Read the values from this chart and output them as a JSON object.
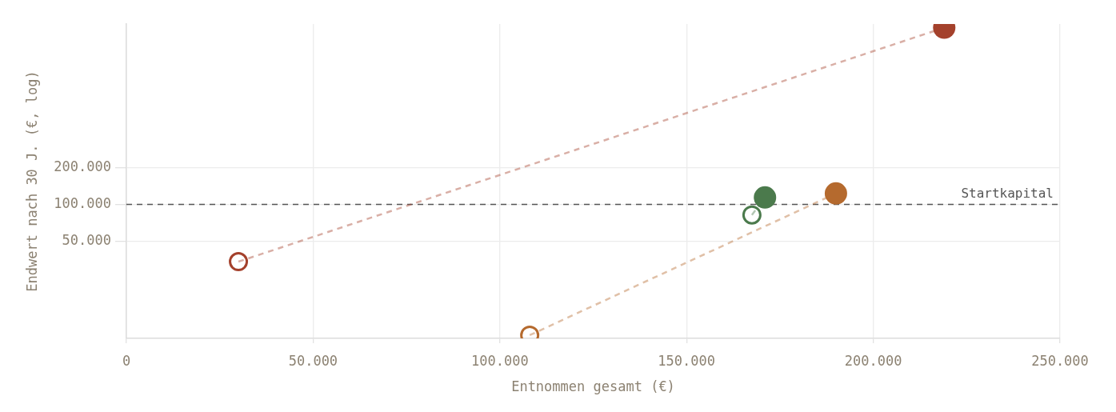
{
  "chart_data": {
    "type": "line",
    "xlabel": "Entnommen gesamt (€)",
    "ylabel": "Endwert nach 30 J. (€, log)",
    "log": "y",
    "xlim": [
      0,
      250000
    ],
    "xticks": [
      0,
      {
        "value": 50000,
        "label": "50.000"
      },
      {
        "value": 100000,
        "label": "100.000"
      },
      {
        "value": 150000,
        "label": "150.000"
      },
      {
        "value": 200000,
        "label": "200.000"
      },
      {
        "value": 250000,
        "label": "250.000"
      }
    ],
    "ylim": [
      8000,
      3000000
    ],
    "yticks": [
      {
        "value": 50000,
        "label": "50.000"
      },
      {
        "value": 100000,
        "label": "100.000"
      },
      {
        "value": 200000,
        "label": "200.000"
      }
    ],
    "grid": true,
    "marker": "circle",
    "line_style": "dashed",
    "series": [
      {
        "color": "#a4412c",
        "x": [
          30000,
          219000
        ],
        "values": [
          34000,
          2800000
        ]
      },
      {
        "color": "#b56a2e",
        "x": [
          108000,
          190000
        ],
        "values": [
          8500,
          123000
        ]
      },
      {
        "color": "#4b7a4c",
        "x": [
          167500,
          171000
        ],
        "values": [
          82000,
          114000
        ]
      }
    ],
    "ref_lines": [
      {
        "axis": "y",
        "value": 100000,
        "label": "Startkapital",
        "color": "#555555",
        "line_style": "dashed"
      }
    ]
  }
}
